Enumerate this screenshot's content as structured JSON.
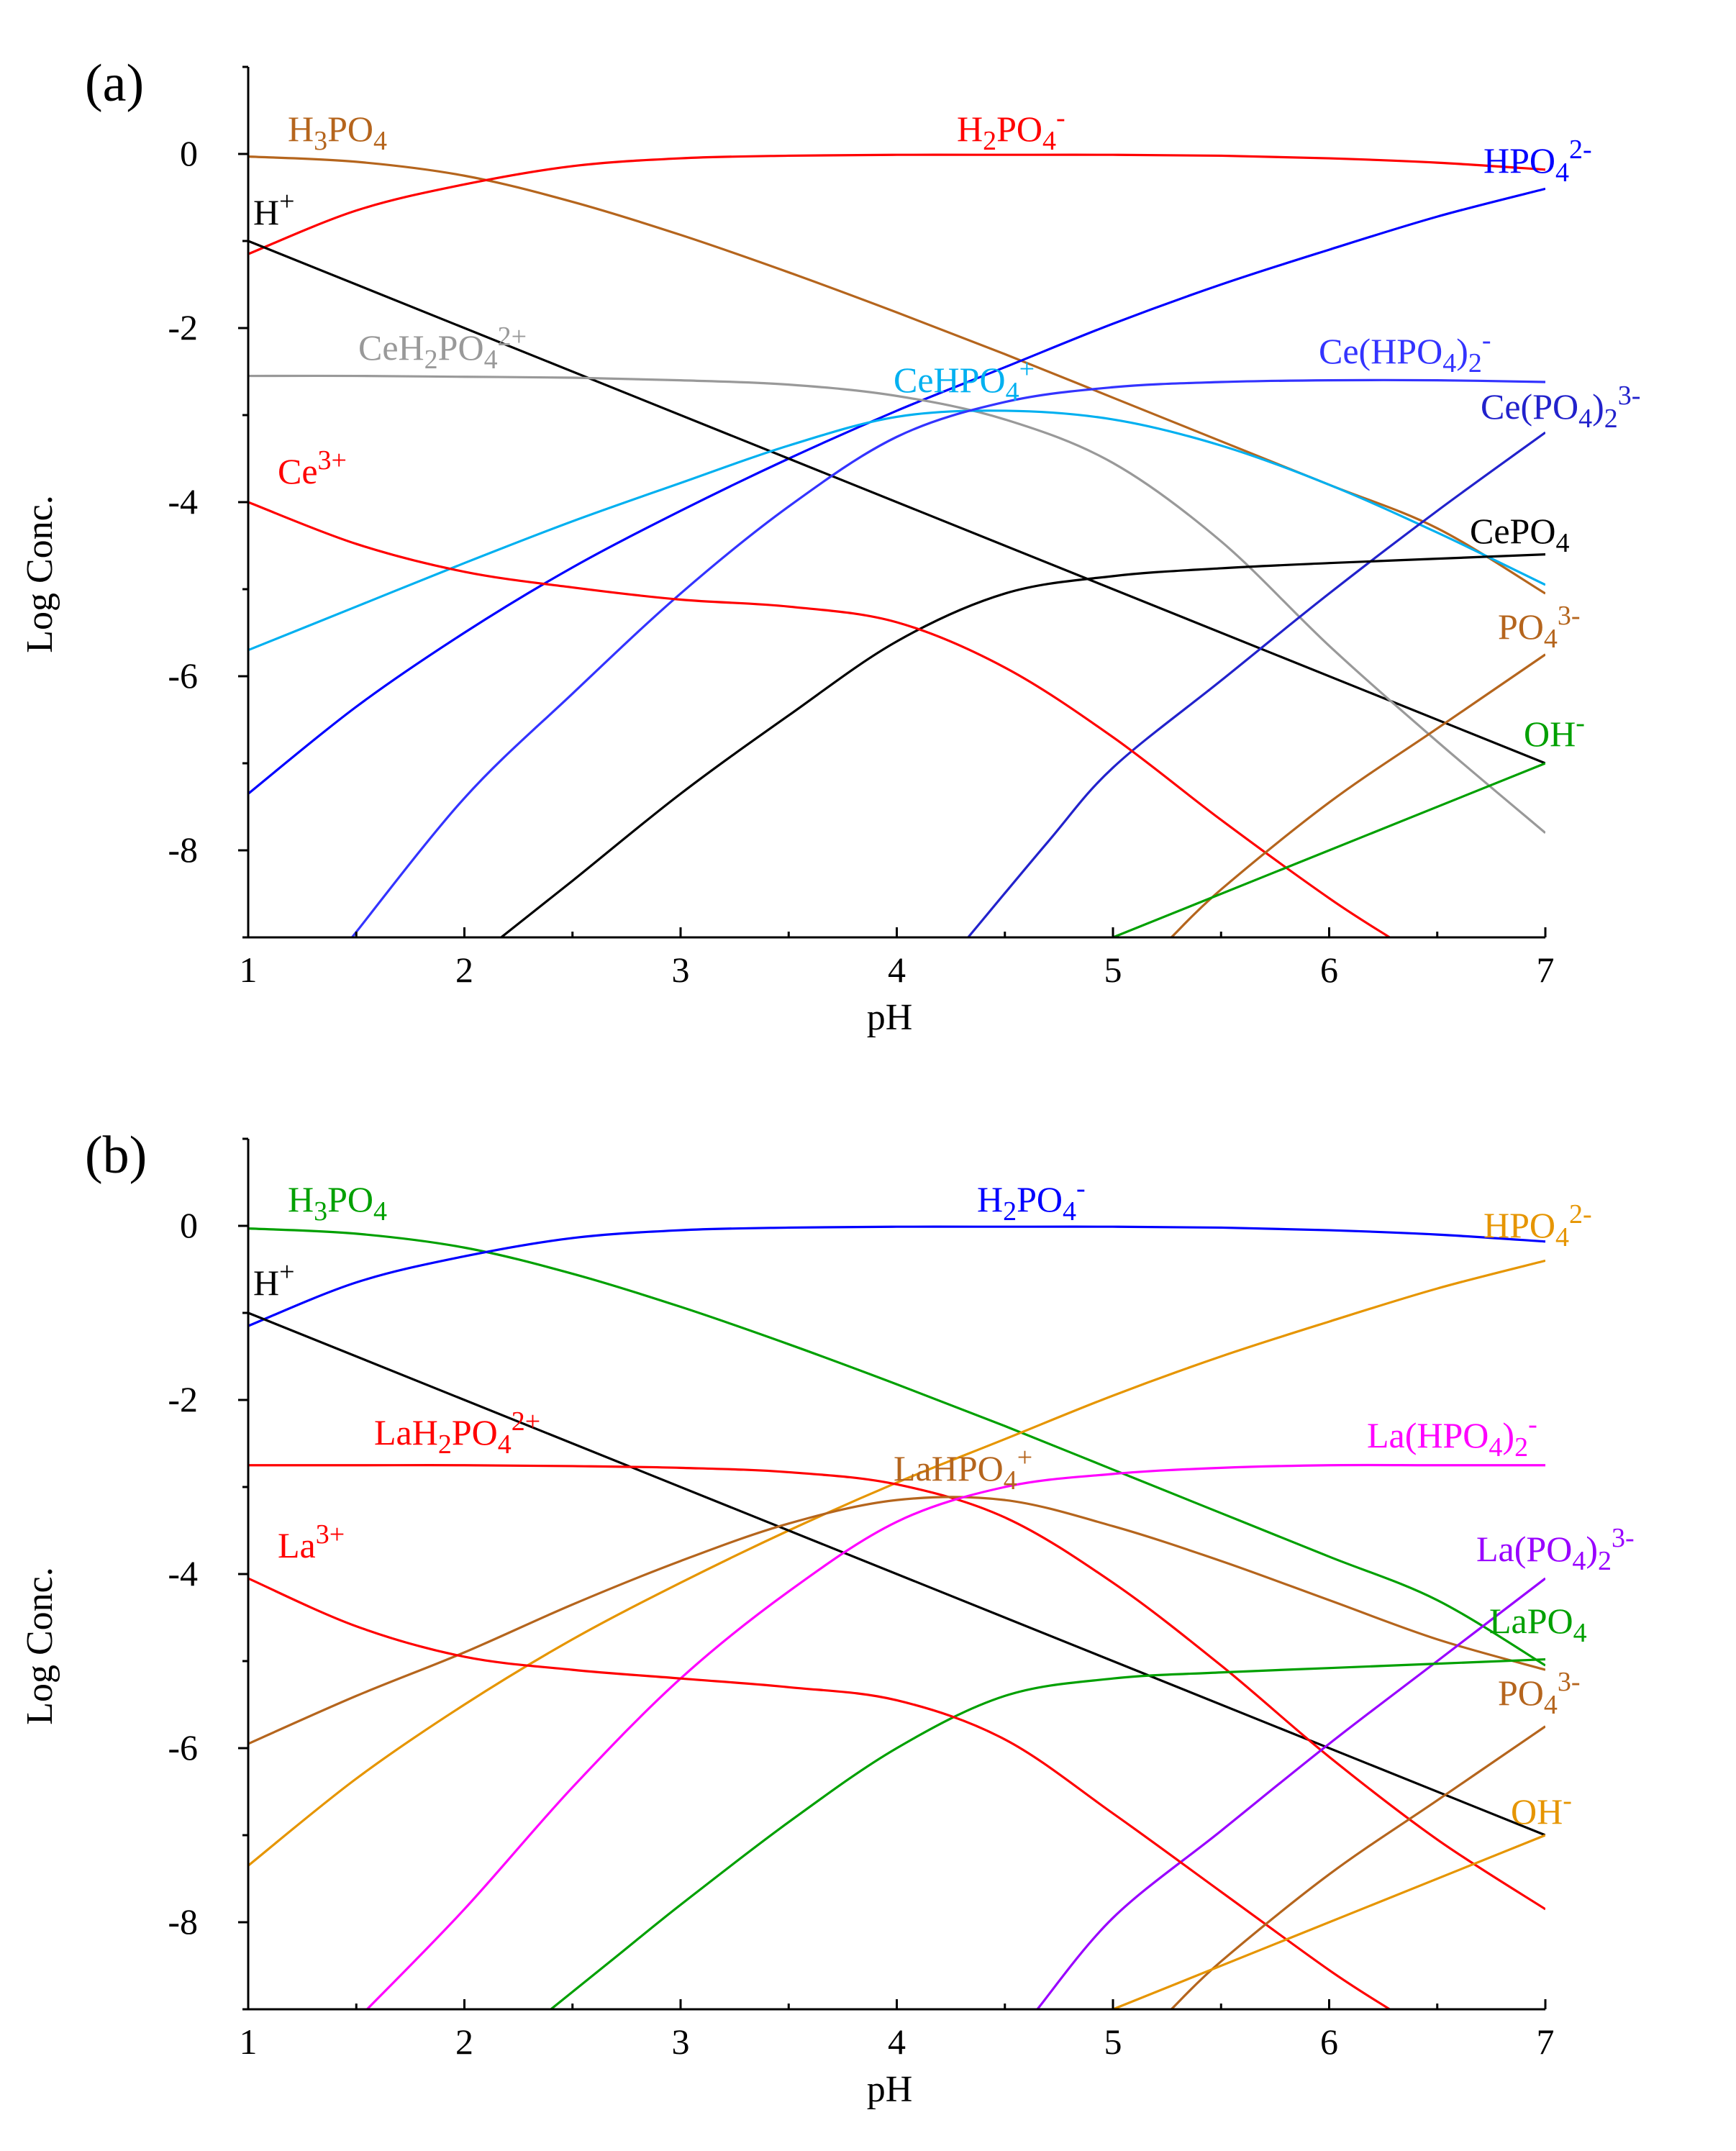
{
  "chart_data": [
    {
      "type": "line",
      "panel_label": "(a)",
      "xlabel": "pH",
      "ylabel": "Log Conc.",
      "xlim": [
        1,
        7
      ],
      "ylim": [
        -9,
        1
      ],
      "xticks": [
        "1",
        "2",
        "3",
        "4",
        "5",
        "6",
        "7"
      ],
      "yticks": [
        "0",
        "-2",
        "-4",
        "-6",
        "-8"
      ],
      "series": [
        {
          "name": "H3PO4",
          "color": "#b5651d",
          "x": [
            1,
            1.5,
            2,
            2.5,
            3,
            3.5,
            4,
            4.5,
            5,
            5.5,
            6,
            6.5,
            7
          ],
          "y": [
            -0.03,
            -0.09,
            -0.25,
            -0.55,
            -0.93,
            -1.36,
            -1.82,
            -2.3,
            -2.8,
            -3.3,
            -3.8,
            -4.3,
            -5.05
          ]
        },
        {
          "name": "H2PO4-",
          "color": "#ff0000",
          "x": [
            1,
            1.5,
            2,
            2.5,
            3,
            3.5,
            4,
            4.5,
            5,
            5.5,
            6,
            6.5,
            7
          ],
          "y": [
            -1.15,
            -0.65,
            -0.35,
            -0.14,
            -0.05,
            -0.02,
            -0.01,
            -0.01,
            -0.01,
            -0.02,
            -0.05,
            -0.1,
            -0.18
          ]
        },
        {
          "name": "HPO4 2-",
          "color": "#0000ff",
          "x": [
            1,
            1.5,
            2,
            2.5,
            3,
            3.5,
            4,
            4.5,
            5,
            5.5,
            6,
            6.5,
            7
          ],
          "y": [
            -7.35,
            -6.35,
            -5.5,
            -4.75,
            -4.1,
            -3.5,
            -2.95,
            -2.45,
            -1.95,
            -1.5,
            -1.1,
            -0.72,
            -0.4
          ]
        },
        {
          "name": "H+",
          "color": "#000000",
          "x": [
            1,
            7
          ],
          "y": [
            -1,
            -7
          ]
        },
        {
          "name": "CeH2PO4 2+",
          "color": "#999999",
          "x": [
            1,
            1.5,
            2,
            2.5,
            3,
            3.5,
            4,
            4.5,
            5,
            5.5,
            6,
            6.5,
            7
          ],
          "y": [
            -2.55,
            -2.55,
            -2.56,
            -2.57,
            -2.6,
            -2.65,
            -2.78,
            -3.05,
            -3.55,
            -4.45,
            -5.65,
            -6.75,
            -7.8
          ]
        },
        {
          "name": "CeHPO4+",
          "color": "#00b0f0",
          "x": [
            1,
            1.5,
            2,
            2.5,
            3,
            3.5,
            4,
            4.5,
            5,
            5.5,
            6,
            6.5,
            7
          ],
          "y": [
            -5.7,
            -5.2,
            -4.7,
            -4.22,
            -3.78,
            -3.35,
            -3.02,
            -2.95,
            -3.05,
            -3.35,
            -3.8,
            -4.35,
            -4.95
          ]
        },
        {
          "name": "Ce(HPO4)2-",
          "color": "#3333ff",
          "x": [
            1.48,
            2,
            2.5,
            3,
            3.5,
            4,
            4.5,
            5,
            5.5,
            6,
            6.5,
            7
          ],
          "y": [
            -9,
            -7.4,
            -6.2,
            -5.05,
            -4.05,
            -3.25,
            -2.85,
            -2.68,
            -2.62,
            -2.6,
            -2.6,
            -2.62
          ]
        },
        {
          "name": "Ce(PO4)2 3-",
          "color": "#2222cc",
          "x": [
            4.33,
            4.7,
            5,
            5.5,
            6,
            6.5,
            7
          ],
          "y": [
            -9,
            -7.9,
            -7.05,
            -6.05,
            -5.05,
            -4.1,
            -3.2
          ]
        },
        {
          "name": "CePO4",
          "color": "#000000",
          "x": [
            2.17,
            2.5,
            3,
            3.5,
            4,
            4.5,
            5,
            5.5,
            6,
            6.5,
            7
          ],
          "y": [
            -9,
            -8.35,
            -7.35,
            -6.45,
            -5.6,
            -5.05,
            -4.85,
            -4.76,
            -4.7,
            -4.65,
            -4.6
          ]
        },
        {
          "name": "Ce3+",
          "color": "#ff0000",
          "x": [
            1,
            1.5,
            2,
            2.5,
            3,
            3.5,
            4,
            4.5,
            5,
            5.5,
            6,
            6.28
          ],
          "y": [
            -4,
            -4.48,
            -4.8,
            -4.98,
            -5.12,
            -5.2,
            -5.38,
            -5.9,
            -6.7,
            -7.65,
            -8.55,
            -9
          ]
        },
        {
          "name": "PO4 3-",
          "color": "#b5651d",
          "x": [
            5.27,
            5.5,
            6,
            6.5,
            7
          ],
          "y": [
            -9,
            -8.45,
            -7.45,
            -6.6,
            -5.75
          ]
        },
        {
          "name": "OH-",
          "color": "#00a000",
          "x": [
            5,
            7
          ],
          "y": [
            -9,
            -7
          ]
        }
      ],
      "labels": [
        {
          "text": "H",
          "sup": "+",
          "color": "#000000"
        },
        {
          "text": "H",
          "sub1": "3",
          "text2": "PO",
          "sub2": "4",
          "color": "#b5651d"
        },
        {
          "text": "H",
          "sub1": "2",
          "text2": "PO",
          "sub2": "4",
          "sup": "-",
          "color": "#ff0000"
        },
        {
          "text": "HPO",
          "sub1": "4",
          "sup": "2-",
          "color": "#0000ff"
        },
        {
          "text": "CeH",
          "sub1": "2",
          "text2": "PO",
          "sub2": "4",
          "sup": "2+",
          "color": "#999999"
        },
        {
          "text": "CeHPO",
          "sub1": "4",
          "sup": "+",
          "color": "#00b0f0"
        },
        {
          "text": "Ce(HPO",
          "sub1": "4",
          "text2": ")",
          "sub2": "2",
          "sup": "-",
          "color": "#3333ff"
        },
        {
          "text": "Ce(PO",
          "sub1": "4",
          "text2": ")",
          "sub2": "2",
          "sup": "3-",
          "color": "#2222cc"
        },
        {
          "text": "Ce",
          "sup": "3+",
          "color": "#ff0000"
        },
        {
          "text": "CePO",
          "sub1": "4",
          "color": "#000000"
        },
        {
          "text": "PO",
          "sub1": "4",
          "sup": "3-",
          "color": "#b5651d"
        },
        {
          "text": "OH",
          "sup": "-",
          "color": "#00a000"
        }
      ]
    },
    {
      "type": "line",
      "panel_label": "(b)",
      "xlabel": "pH",
      "ylabel": "Log Conc.",
      "xlim": [
        1,
        7
      ],
      "ylim": [
        -9,
        1
      ],
      "xticks": [
        "1",
        "2",
        "3",
        "4",
        "5",
        "6",
        "7"
      ],
      "yticks": [
        "0",
        "-2",
        "-4",
        "-6",
        "-8"
      ],
      "series": [
        {
          "name": "H3PO4",
          "color": "#00a000",
          "x": [
            1,
            1.5,
            2,
            2.5,
            3,
            3.5,
            4,
            4.5,
            5,
            5.5,
            6,
            6.5,
            7
          ],
          "y": [
            -0.03,
            -0.09,
            -0.25,
            -0.55,
            -0.93,
            -1.36,
            -1.82,
            -2.3,
            -2.8,
            -3.3,
            -3.8,
            -4.3,
            -5.05
          ]
        },
        {
          "name": "H2PO4-",
          "color": "#0000ff",
          "x": [
            1,
            1.5,
            2,
            2.5,
            3,
            3.5,
            4,
            4.5,
            5,
            5.5,
            6,
            6.5,
            7
          ],
          "y": [
            -1.15,
            -0.65,
            -0.35,
            -0.14,
            -0.05,
            -0.02,
            -0.01,
            -0.01,
            -0.01,
            -0.02,
            -0.05,
            -0.1,
            -0.18
          ]
        },
        {
          "name": "HPO4 2-",
          "color": "#e69500",
          "x": [
            1,
            1.5,
            2,
            2.5,
            3,
            3.5,
            4,
            4.5,
            5,
            5.5,
            6,
            6.5,
            7
          ],
          "y": [
            -7.35,
            -6.35,
            -5.5,
            -4.75,
            -4.1,
            -3.5,
            -2.95,
            -2.45,
            -1.95,
            -1.5,
            -1.1,
            -0.72,
            -0.4
          ]
        },
        {
          "name": "H+",
          "color": "#000000",
          "x": [
            1,
            7
          ],
          "y": [
            -1,
            -7
          ]
        },
        {
          "name": "LaH2PO4 2+",
          "color": "#ff0000",
          "x": [
            1,
            1.5,
            2,
            2.5,
            3,
            3.5,
            4,
            4.5,
            5,
            5.5,
            6,
            6.5,
            7
          ],
          "y": [
            -2.75,
            -2.75,
            -2.75,
            -2.76,
            -2.78,
            -2.83,
            -2.97,
            -3.35,
            -4.1,
            -5.05,
            -6.1,
            -7.05,
            -7.85
          ]
        },
        {
          "name": "LaHPO4+",
          "color": "#b5651d",
          "x": [
            1,
            1.5,
            2,
            2.5,
            3,
            3.5,
            4,
            4.5,
            5,
            5.5,
            6,
            6.5,
            7
          ],
          "y": [
            -5.95,
            -5.4,
            -4.9,
            -4.35,
            -3.85,
            -3.42,
            -3.15,
            -3.15,
            -3.45,
            -3.85,
            -4.3,
            -4.75,
            -5.1
          ]
        },
        {
          "name": "La(HPO4)2-",
          "color": "#ff00ff",
          "x": [
            1.55,
            2,
            2.5,
            3,
            3.5,
            4,
            4.5,
            5,
            5.5,
            6,
            6.5,
            7
          ],
          "y": [
            -9,
            -7.85,
            -6.45,
            -5.2,
            -4.2,
            -3.4,
            -3.0,
            -2.85,
            -2.78,
            -2.75,
            -2.75,
            -2.75
          ]
        },
        {
          "name": "La(PO4)2 3-",
          "color": "#9900ff",
          "x": [
            4.65,
            5,
            5.5,
            6,
            6.5,
            7
          ],
          "y": [
            -9,
            -7.95,
            -6.95,
            -5.95,
            -5.0,
            -4.05
          ]
        },
        {
          "name": "LaPO4",
          "color": "#00a000",
          "x": [
            2.4,
            2.7,
            3,
            3.5,
            4,
            4.5,
            5,
            5.5,
            6,
            6.5,
            7
          ],
          "y": [
            -9,
            -8.4,
            -7.8,
            -6.85,
            -6.0,
            -5.4,
            -5.2,
            -5.13,
            -5.08,
            -5.03,
            -4.98
          ]
        },
        {
          "name": "La3+",
          "color": "#ff0000",
          "x": [
            1,
            1.5,
            2,
            2.5,
            3,
            3.5,
            4,
            4.5,
            5,
            5.5,
            6,
            6.28
          ],
          "y": [
            -4.05,
            -4.6,
            -4.95,
            -5.1,
            -5.2,
            -5.3,
            -5.45,
            -5.9,
            -6.75,
            -7.65,
            -8.55,
            -9
          ]
        },
        {
          "name": "PO4 3-",
          "color": "#b5651d",
          "x": [
            5.27,
            5.5,
            6,
            6.5,
            7
          ],
          "y": [
            -9,
            -8.45,
            -7.45,
            -6.6,
            -5.75
          ]
        },
        {
          "name": "OH-",
          "color": "#e69500",
          "x": [
            5,
            7
          ],
          "y": [
            -9,
            -7
          ]
        }
      ],
      "labels": [
        {
          "text": "H",
          "sup": "+",
          "color": "#000000"
        },
        {
          "text": "H",
          "sub1": "3",
          "text2": "PO",
          "sub2": "4",
          "color": "#00a000"
        },
        {
          "text": "H",
          "sub1": "2",
          "text2": "PO",
          "sub2": "4",
          "sup": "-",
          "color": "#0000ff"
        },
        {
          "text": "HPO",
          "sub1": "4",
          "sup": "2-",
          "color": "#e69500"
        },
        {
          "text": "LaH",
          "sub1": "2",
          "text2": "PO",
          "sub2": "4",
          "sup": "2+",
          "color": "#ff0000"
        },
        {
          "text": "LaHPO",
          "sub1": "4",
          "sup": "+",
          "color": "#b5651d"
        },
        {
          "text": "La(HPO",
          "sub1": "4",
          "text2": ")",
          "sub2": "2",
          "sup": "-",
          "color": "#ff00ff"
        },
        {
          "text": "La(PO",
          "sub1": "4",
          "text2": ")",
          "sub2": "2",
          "sup": "3-",
          "color": "#9900ff"
        },
        {
          "text": "La",
          "sup": "3+",
          "color": "#ff0000"
        },
        {
          "text": "LaPO",
          "sub1": "4",
          "color": "#00a000"
        },
        {
          "text": "PO",
          "sub1": "4",
          "sup": "3-",
          "color": "#b5651d"
        },
        {
          "text": "OH",
          "sup": "-",
          "color": "#e69500"
        }
      ]
    }
  ]
}
